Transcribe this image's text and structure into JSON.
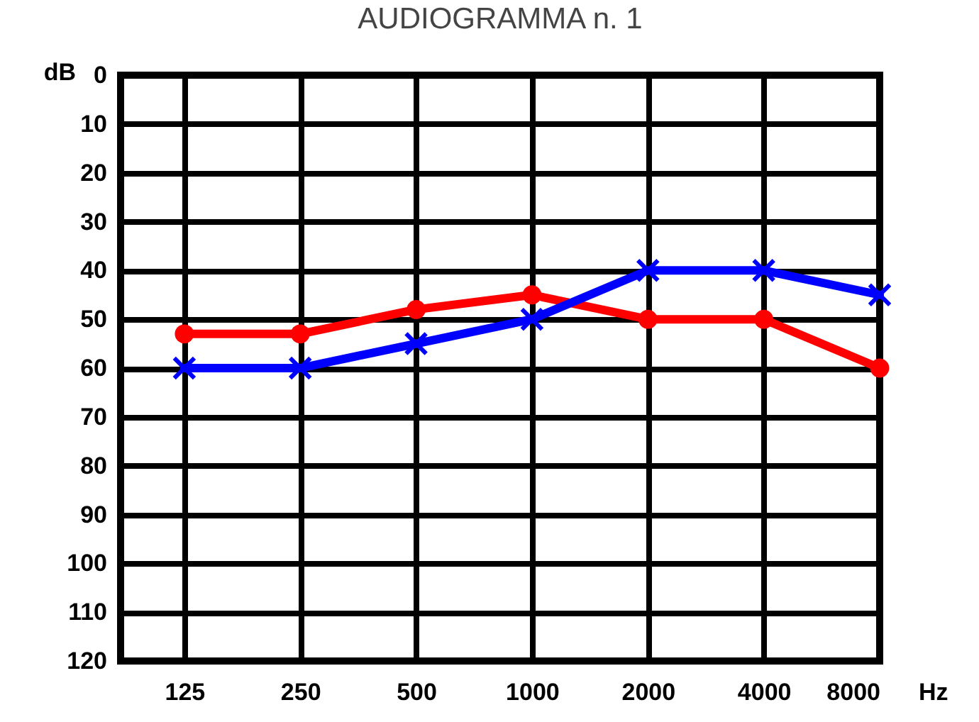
{
  "chart_data": {
    "type": "line",
    "title": "AUDIOGRAMMA n. 1",
    "xlabel": "Hz",
    "ylabel": "dB",
    "categories": [
      "125",
      "250",
      "500",
      "1000",
      "2000",
      "4000",
      "8000"
    ],
    "series": [
      {
        "color": "#ff0000",
        "marker": "circle",
        "values": [
          53,
          53,
          48,
          45,
          50,
          50,
          60
        ]
      },
      {
        "color": "#0000ff",
        "marker": "cross",
        "values": [
          60,
          60,
          55,
          50,
          40,
          40,
          45
        ]
      }
    ],
    "ylim": [
      120,
      0
    ],
    "yticks": [
      0,
      10,
      20,
      30,
      40,
      50,
      60,
      70,
      80,
      90,
      100,
      110,
      120
    ],
    "grid": true
  }
}
